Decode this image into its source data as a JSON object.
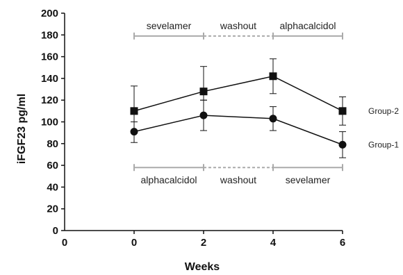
{
  "chart_data": {
    "type": "line",
    "xlabel": "Weeks",
    "ylabel": "iFGF23 pg/ml",
    "xlim": [
      0,
      6
    ],
    "ylim": [
      0,
      200
    ],
    "x_ticks": [
      0,
      2,
      4,
      6
    ],
    "y_ticks": [
      0,
      20,
      40,
      60,
      80,
      100,
      120,
      140,
      160,
      180,
      200
    ],
    "x": [
      0,
      2,
      4,
      6
    ],
    "series": [
      {
        "name": "Group-2",
        "marker": "square",
        "values": [
          110,
          128,
          142,
          110
        ],
        "err_up": [
          23,
          23,
          16,
          13
        ],
        "err_down": [
          10,
          8,
          16,
          13
        ]
      },
      {
        "name": "Group-1",
        "marker": "circle",
        "values": [
          91,
          106,
          103,
          79
        ],
        "err_up": [
          9,
          14,
          11,
          12
        ],
        "err_down": [
          10,
          14,
          11,
          12
        ]
      }
    ],
    "phases_top": [
      {
        "label": "sevelamer",
        "from": 0,
        "to": 2,
        "style": "solid"
      },
      {
        "label": "washout",
        "from": 2,
        "to": 4,
        "style": "dashed"
      },
      {
        "label": "alphacalcidol",
        "from": 4,
        "to": 6,
        "style": "solid"
      }
    ],
    "phases_bottom": [
      {
        "label": "alphacalcidol",
        "from": 0,
        "to": 2,
        "style": "solid"
      },
      {
        "label": "washout",
        "from": 2,
        "to": 4,
        "style": "dashed"
      },
      {
        "label": "sevelamer",
        "from": 4,
        "to": 6,
        "style": "solid"
      }
    ],
    "phase_level_top": 179,
    "phase_level_bottom": 58,
    "colors": {
      "line": "#111111",
      "phase": "#aaaaaa"
    },
    "grid": false,
    "legend": "right"
  }
}
